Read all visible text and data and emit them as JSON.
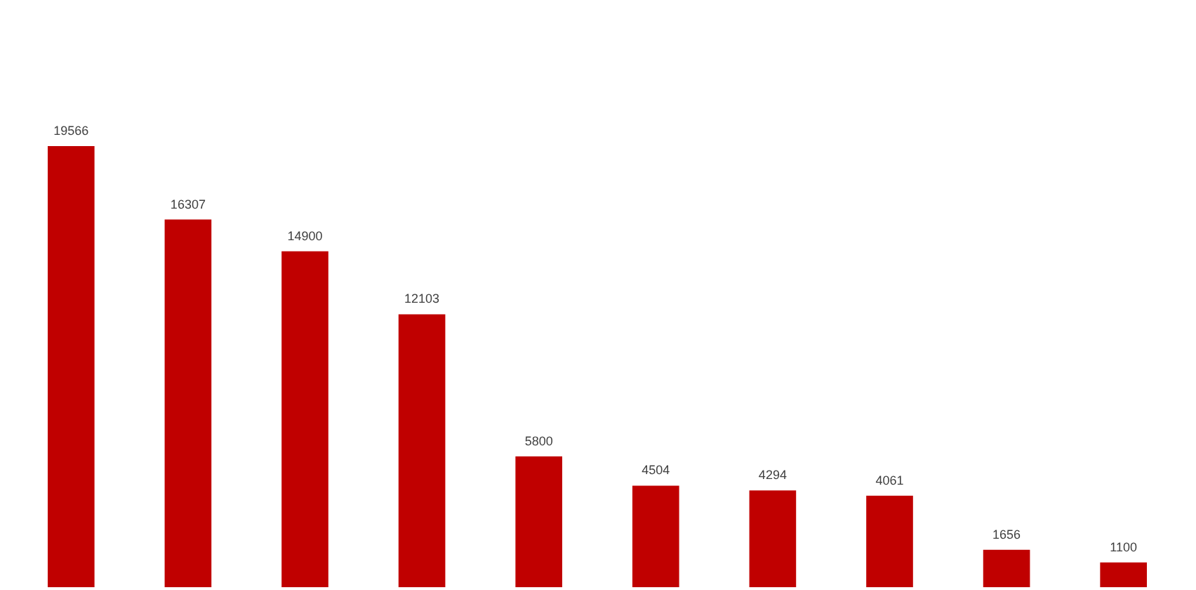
{
  "chart_data": {
    "type": "bar",
    "categories": [
      null,
      null,
      null,
      null,
      null,
      null,
      null,
      null,
      null,
      null
    ],
    "values": [
      19566,
      16307,
      14900,
      12103,
      5800,
      4504,
      4294,
      4061,
      1656,
      1100
    ],
    "color": "#c00000",
    "data_labels": true,
    "tick_labels": false
  }
}
